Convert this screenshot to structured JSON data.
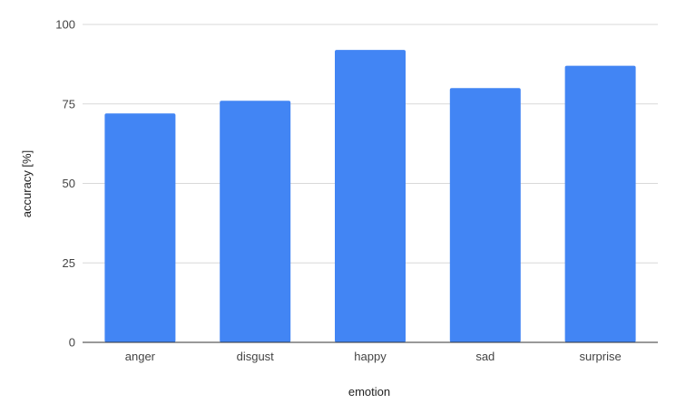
{
  "chart_data": {
    "type": "bar",
    "categories": [
      "anger",
      "disgust",
      "happy",
      "sad",
      "surprise"
    ],
    "values": [
      72,
      76,
      92,
      80,
      87
    ],
    "title": "",
    "xlabel": "emotion",
    "ylabel": "accuracy [%]",
    "ylim": [
      0,
      100
    ],
    "yticks": [
      0,
      25,
      50,
      75,
      100
    ],
    "grid": true,
    "legend": "none",
    "colors": {
      "bar": "#4285f4",
      "grid": "#d9d9d9",
      "axis": "#333333",
      "text": "#444444"
    }
  }
}
